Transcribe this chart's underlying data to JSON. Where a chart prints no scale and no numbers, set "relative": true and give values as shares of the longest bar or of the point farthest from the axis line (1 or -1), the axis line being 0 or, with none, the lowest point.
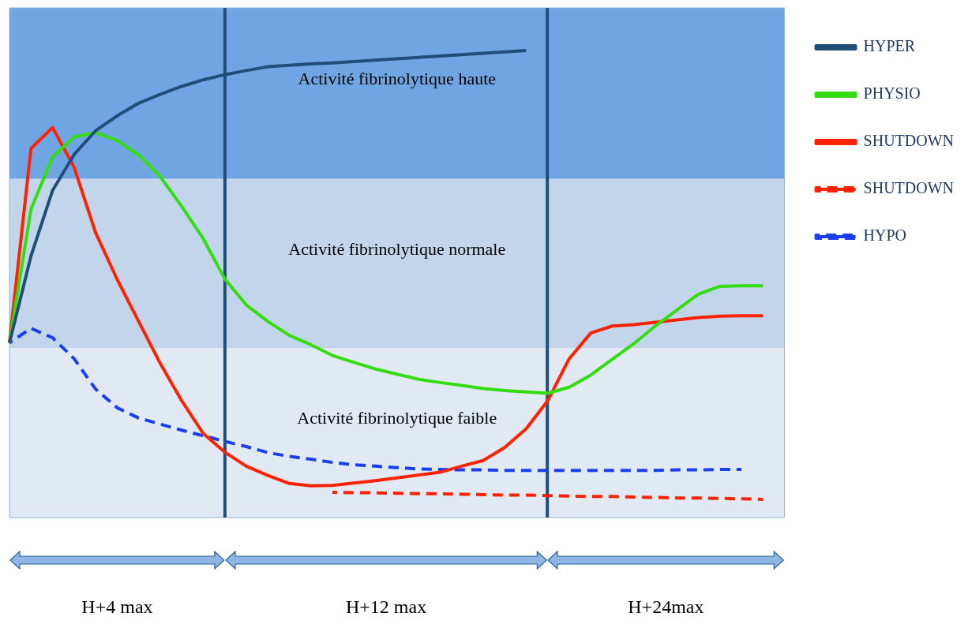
{
  "chart_data": {
    "type": "line",
    "relative": true,
    "marker": "none",
    "legend": "right",
    "categories": [
      null,
      null,
      null,
      null,
      null,
      null,
      null,
      null,
      null,
      null,
      null,
      null,
      null,
      null,
      null,
      null,
      null,
      null,
      null,
      null,
      null,
      null,
      null,
      null,
      null,
      null,
      null,
      null,
      null,
      null,
      null,
      null,
      null,
      null,
      null,
      null,
      null
    ],
    "series": [
      {
        "name": "HYPER",
        "color": "#1f4e79",
        "values": [
          0.374,
          0.56,
          0.7,
          0.777,
          0.828,
          0.86,
          0.887,
          0.906,
          0.923,
          0.937,
          0.948,
          0.957,
          0.965,
          0.968,
          0.971,
          0.973,
          0.976,
          0.979,
          0.982,
          0.985,
          0.988,
          0.991,
          0.994,
          0.997,
          1.0,
          null,
          null,
          null,
          null,
          null,
          null,
          null,
          null,
          null,
          null,
          null,
          null
        ]
      },
      {
        "name": "PHYSIO",
        "color": "#33dd11",
        "values": [
          0.374,
          0.66,
          0.772,
          0.815,
          0.824,
          0.807,
          0.776,
          0.73,
          0.666,
          0.597,
          0.511,
          0.455,
          0.42,
          0.39,
          0.37,
          0.347,
          0.332,
          0.318,
          0.307,
          0.296,
          0.289,
          0.283,
          0.276,
          0.272,
          0.269,
          0.266,
          0.279,
          0.305,
          0.339,
          0.372,
          0.41,
          0.444,
          0.478,
          0.495,
          0.496,
          0.496,
          null
        ]
      },
      {
        "name": "SHUTDOWN",
        "color": "#ff2200",
        "values": [
          0.374,
          0.79,
          0.835,
          0.75,
          0.61,
          0.51,
          0.42,
          0.33,
          0.25,
          0.18,
          0.14,
          0.11,
          0.09,
          0.073,
          0.068,
          0.069,
          0.074,
          0.079,
          0.085,
          0.091,
          0.097,
          0.11,
          0.122,
          0.15,
          0.19,
          0.25,
          0.34,
          0.395,
          0.41,
          0.413,
          0.418,
          0.423,
          0.428,
          0.431,
          0.432,
          0.432,
          null
        ]
      },
      {
        "name": "SHUTDOWN",
        "color": "#ff2200",
        "line_style": "dashed",
        "values": [
          null,
          null,
          null,
          null,
          null,
          null,
          null,
          null,
          null,
          null,
          null,
          null,
          null,
          null,
          null,
          0.054,
          0.053,
          0.053,
          0.052,
          0.051,
          0.051,
          0.05,
          0.049,
          0.048,
          0.048,
          0.047,
          0.046,
          0.045,
          0.045,
          0.044,
          0.043,
          0.042,
          0.042,
          0.041,
          0.04,
          0.039,
          null
        ]
      },
      {
        "name": "HYPO",
        "color": "#1a3ff0",
        "line_style": "dashed",
        "values": [
          0.374,
          0.405,
          0.385,
          0.34,
          0.275,
          0.235,
          0.213,
          0.2,
          0.187,
          0.175,
          0.163,
          0.152,
          0.139,
          0.131,
          0.125,
          0.118,
          0.113,
          0.11,
          0.107,
          0.104,
          0.103,
          0.102,
          0.102,
          0.101,
          0.101,
          0.101,
          0.101,
          0.101,
          0.101,
          0.101,
          0.101,
          0.102,
          0.102,
          0.103,
          0.103,
          null,
          null
        ]
      }
    ],
    "bands": [
      {
        "axis": "y",
        "from": 0.725,
        "to": 1.091,
        "label": "Activité fibrinolytique haute",
        "color": "#6fa5e3"
      },
      {
        "axis": "y",
        "from": 0.363,
        "to": 0.725,
        "label": "Activité fibrinolytique normale",
        "color": "#c3d5ea"
      },
      {
        "axis": "y",
        "from": 0,
        "to": 0.363,
        "label": "Activité fibrinolytique faible",
        "color": "#e1e9f2"
      }
    ],
    "annotations": [
      "H+4 max",
      "H+12 max",
      "H+24max"
    ]
  }
}
